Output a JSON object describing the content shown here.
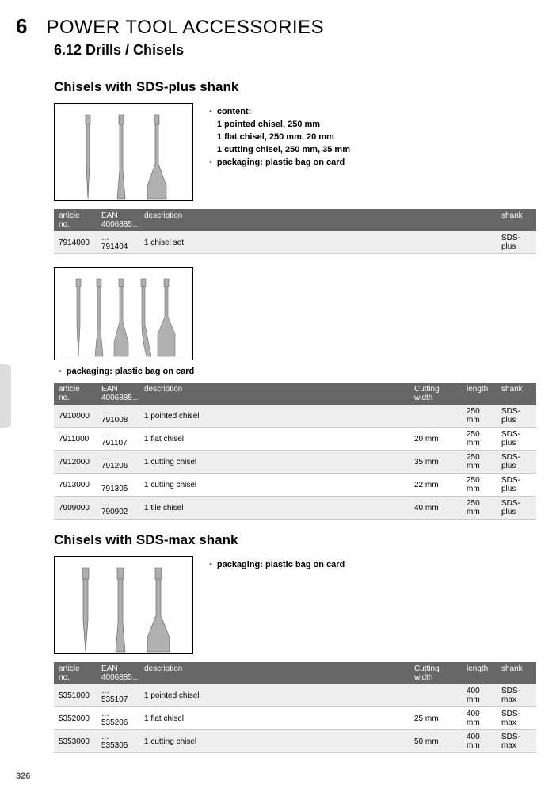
{
  "chapter_num": "6",
  "chapter_title": "POWER TOOL ACCESSORIES",
  "subtitle": "6.12 Drills / Chisels",
  "page_number": "326",
  "section1": {
    "heading": "Chisels with SDS-plus shank",
    "bullets": [
      {
        "label": "content:",
        "lines": "1 pointed chisel, 250 mm\n1 flat chisel, 250 mm, 20 mm\n1 cutting chisel, 250 mm, 35 mm"
      },
      {
        "label": "packaging: plastic bag on card",
        "lines": ""
      }
    ],
    "table": {
      "columns": [
        "article no.",
        "EAN\n4006885…",
        "description",
        "shank"
      ],
      "rows": [
        [
          "7914000",
          "…791404",
          "1 chisel set",
          "SDS-plus"
        ]
      ]
    }
  },
  "section2": {
    "bullet": "packaging: plastic bag on card",
    "table": {
      "columns": [
        "article no.",
        "EAN\n4006885…",
        "description",
        "Cutting width",
        "length",
        "shank"
      ],
      "rows": [
        [
          "7910000",
          "…791008",
          "1 pointed chisel",
          "",
          "250 mm",
          "SDS-plus"
        ],
        [
          "7911000",
          "…791107",
          "1 flat chisel",
          "20 mm",
          "250 mm",
          "SDS-plus"
        ],
        [
          "7912000",
          "…791206",
          "1 cutting chisel",
          "35 mm",
          "250 mm",
          "SDS-plus"
        ],
        [
          "7913000",
          "…791305",
          "1 cutting chisel",
          "22 mm",
          "250 mm",
          "SDS-plus"
        ],
        [
          "7909000",
          "…790902",
          "1 tile chisel",
          "40 mm",
          "250 mm",
          "SDS-plus"
        ]
      ]
    }
  },
  "section3": {
    "heading": "Chisels with SDS-max shank",
    "bullet": "packaging: plastic bag on card",
    "table": {
      "columns": [
        "article no.",
        "EAN\n4006885…",
        "description",
        "Cutting width",
        "length",
        "shank"
      ],
      "rows": [
        [
          "5351000",
          "…535107",
          "1 pointed chisel",
          "",
          "400 mm",
          "SDS-max"
        ],
        [
          "5352000",
          "…535206",
          "1 flat chisel",
          "25 mm",
          "400 mm",
          "SDS-max"
        ],
        [
          "5353000",
          "…535305",
          "1 cutting chisel",
          "50 mm",
          "400 mm",
          "SDS-max"
        ]
      ]
    }
  },
  "colors": {
    "header_bg": "#666666",
    "header_fg": "#ffffff",
    "row_odd": "#eeeeee",
    "row_even": "#ffffff",
    "chisel_fill": "#b0b0b0",
    "chisel_stroke": "#555555"
  }
}
